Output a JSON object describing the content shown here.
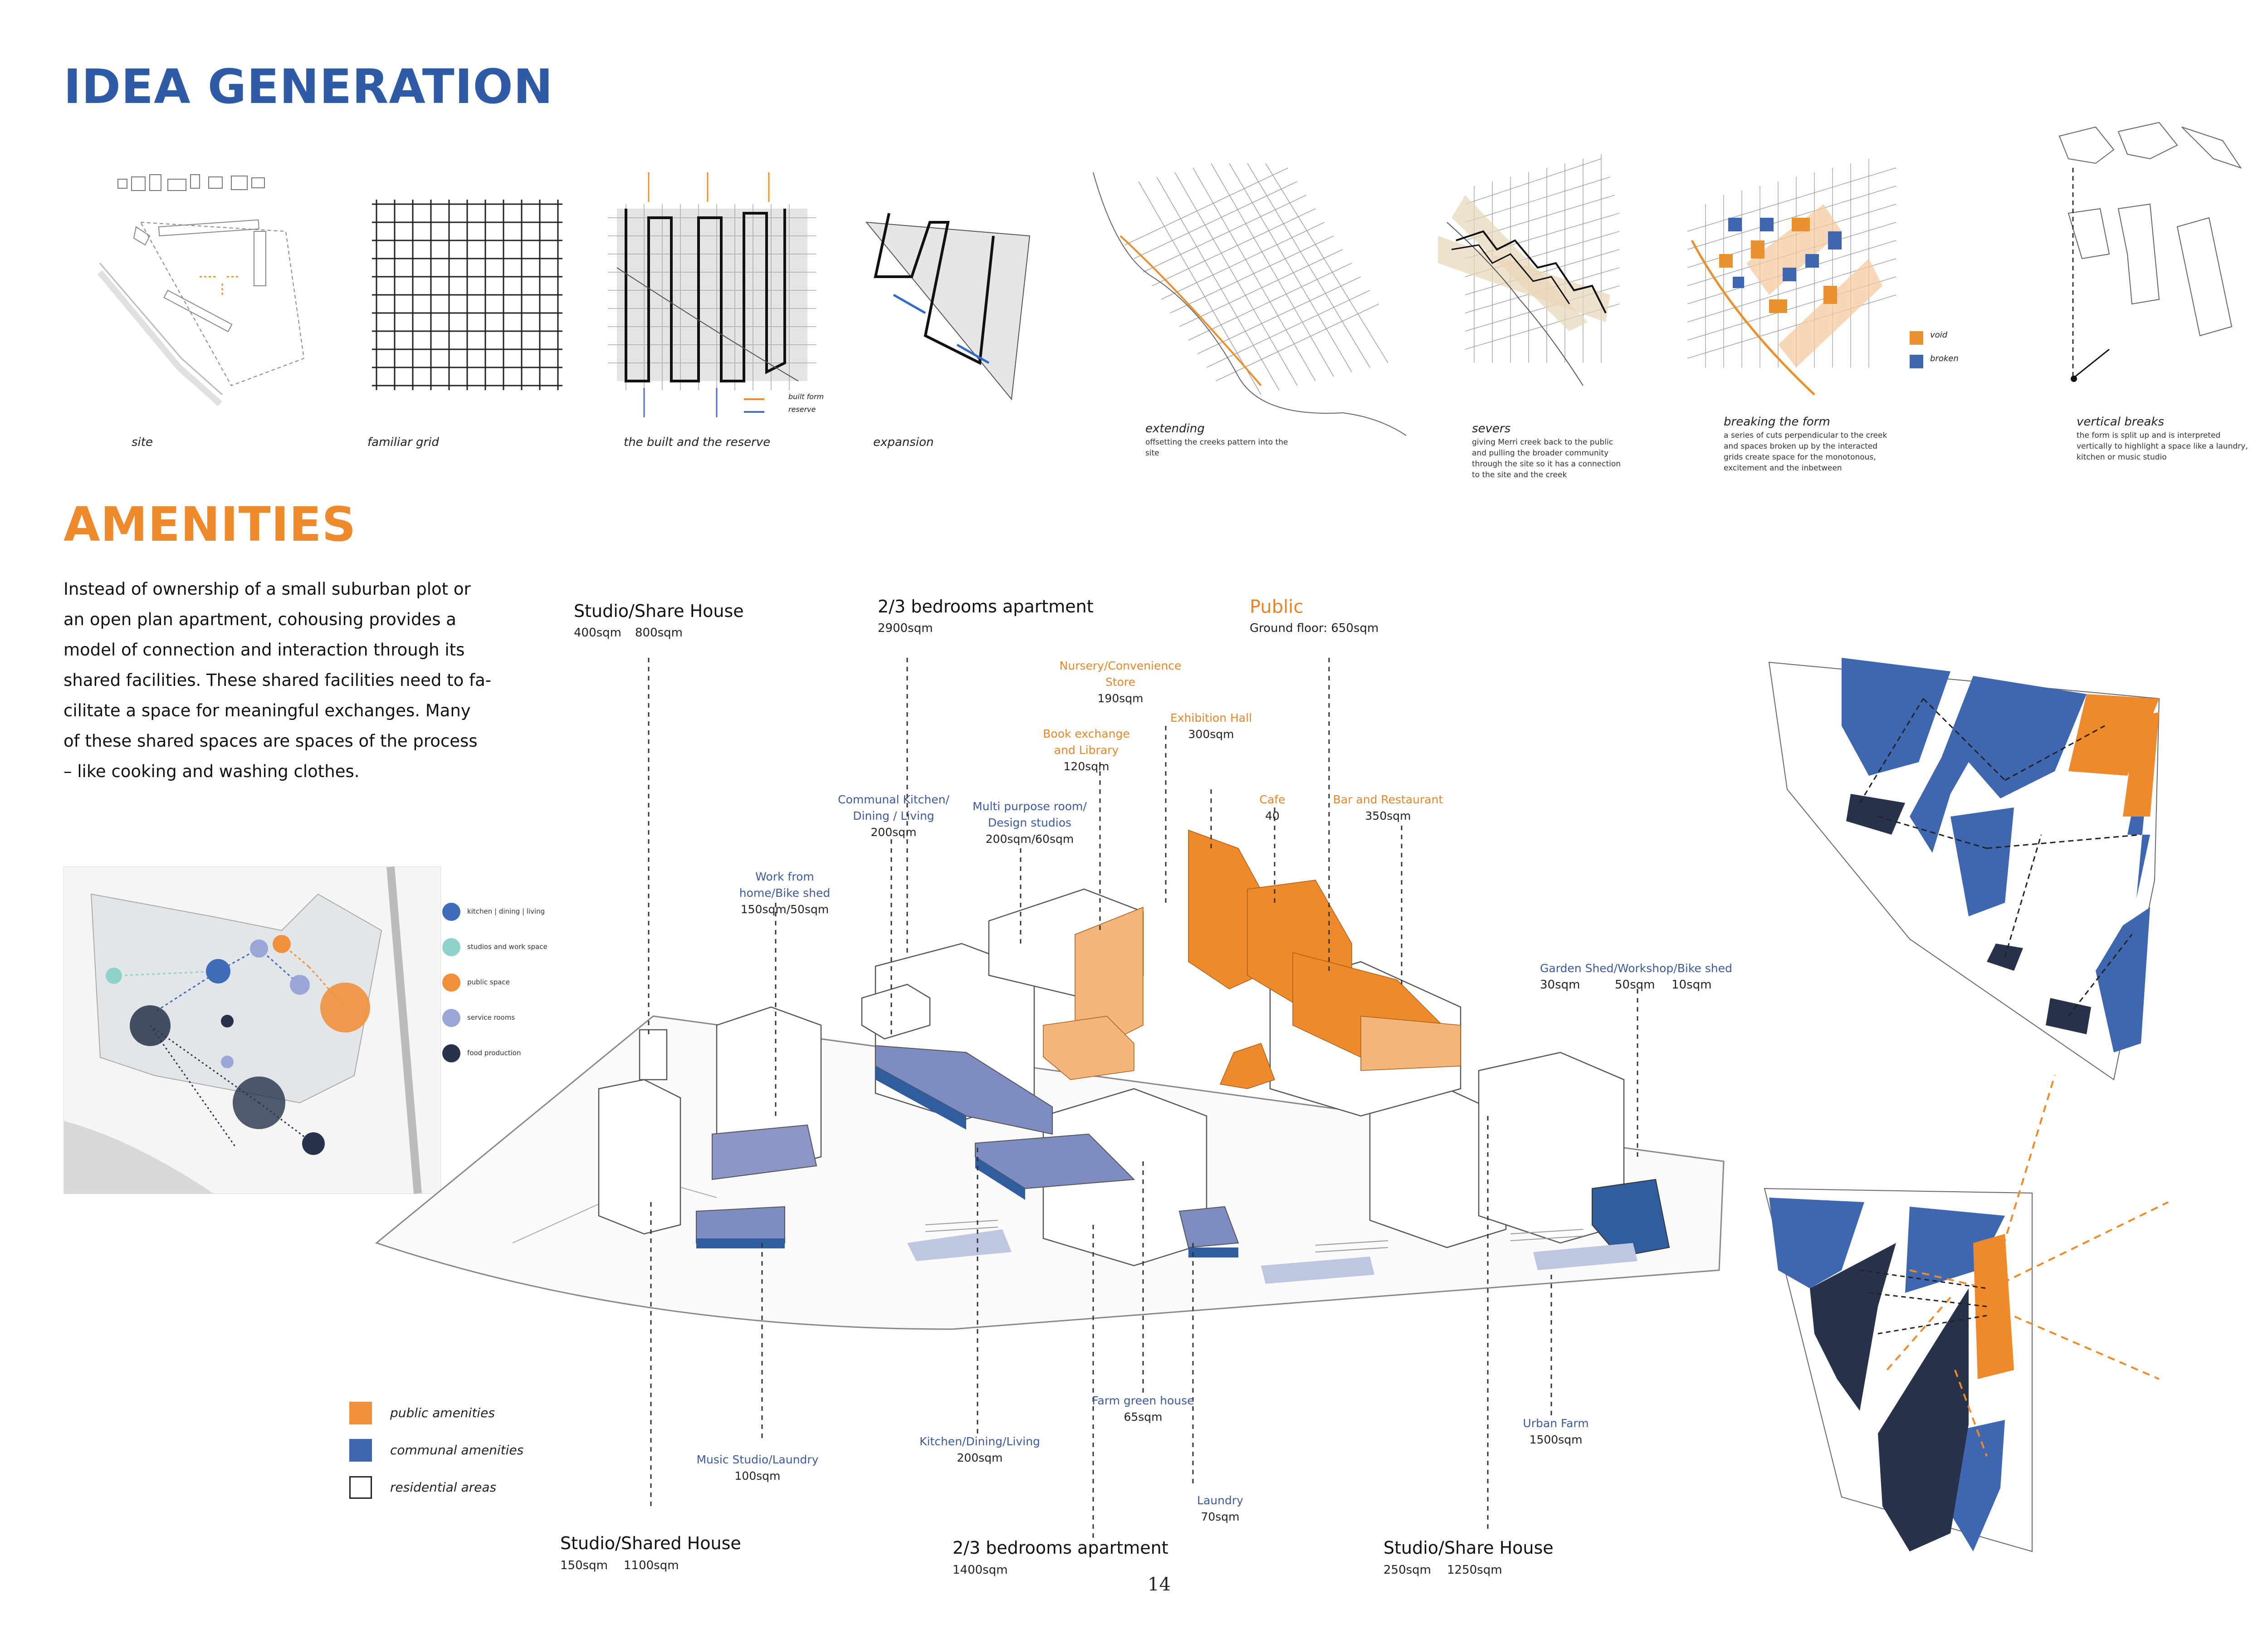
{
  "headings": {
    "idea_generation": "IDEA GENERATION",
    "amenities": "AMENITIES"
  },
  "steps": [
    {
      "title": "site",
      "note": ""
    },
    {
      "title": "familiar grid",
      "note": ""
    },
    {
      "title": "the built and the reserve",
      "note": ""
    },
    {
      "title": "expansion",
      "note": ""
    },
    {
      "title": "extending",
      "note": "offsetting the creeks pattern into the site"
    },
    {
      "title": "severs",
      "note": "giving Merri creek back to the public and pulling the broader community through the site so it has a connection to the site and the creek"
    },
    {
      "title": "breaking the form",
      "note": "a series of cuts perpendicular to the creek and spaces broken up by the interacted grids create space for the monotonous, excitement and the inbetween"
    },
    {
      "title": "vertical breaks",
      "note": "the form is split up and is interpreted vertically to highlight a space like a laundry, kitchen or music studio"
    }
  ],
  "built_reserve_legend": {
    "built": "built form",
    "reserve": "reserve"
  },
  "void_broken_legend": {
    "void": "void",
    "broken": "broken"
  },
  "intro_text": [
    "Instead of ownership of a small suburban plot or",
    "an open plan apartment, cohousing provides a",
    "model of connection and interaction through its",
    "shared facilities. These shared facilities need to fa-",
    "cilitate a space for meaningful exchanges. Many",
    "of these shared spaces are spaces of the process",
    "– like cooking and washing clothes."
  ],
  "small_map_legend": [
    {
      "label": "kitchen | dining | living",
      "color": "#3f6cb8"
    },
    {
      "label": "studios and work space",
      "color": "#8fd2cc"
    },
    {
      "label": "public space",
      "color": "#f0903a"
    },
    {
      "label": "service rooms",
      "color": "#9aa6d8"
    },
    {
      "label": "food production",
      "color": "#28324a"
    }
  ],
  "labels": {
    "studio_share_top": {
      "title": "Studio/Share House",
      "a": "400sqm",
      "b": "800sqm"
    },
    "apt_top": {
      "title": "2/3 bedrooms apartment",
      "a": "2900sqm"
    },
    "public_top": {
      "title": "Public",
      "a": "Ground floor: 650sqm"
    },
    "nursery": {
      "name": "Nursery/Convenience Store",
      "val": "190sqm"
    },
    "exhibition": {
      "name": "Exhibition Hall",
      "val": "300sqm"
    },
    "book": {
      "name": "Book exchange and Library",
      "val": "120sqm"
    },
    "cafe": {
      "name": "Cafe",
      "val": "40"
    },
    "bar": {
      "name": "Bar and Restaurant",
      "val": "350sqm"
    },
    "communal_kitchen": {
      "name": "Communal Kitchen/ Dining / Living",
      "val": "200sqm"
    },
    "multi_purpose": {
      "name": "Multi purpose room/ Design studios",
      "val": "200sqm/60sqm"
    },
    "work_from_home": {
      "name": "Work from home/Bike shed",
      "val": "150sqm/50sqm"
    },
    "garden_shed": {
      "name": "Garden Shed/Workshop/Bike shed",
      "a": "30sqm",
      "b": "50sqm",
      "c": "10sqm"
    },
    "music_studio": {
      "name": "Music Studio/Laundry",
      "val": "100sqm"
    },
    "kitchen_dining": {
      "name": "Kitchen/Dining/Living",
      "val": "200sqm"
    },
    "farm_green": {
      "name": "Farm green house",
      "val": "65sqm"
    },
    "laundry": {
      "name": "Laundry",
      "val": "70sqm"
    },
    "urban_farm": {
      "name": "Urban Farm",
      "val": "1500sqm"
    },
    "studio_shared_bottom": {
      "title": "Studio/Shared House",
      "a": "150sqm",
      "b": "1100sqm"
    },
    "apt_bottom": {
      "title": "2/3 bedrooms apartment",
      "a": "1400sqm"
    },
    "studio_share_bottom": {
      "title": "Studio/Share House",
      "a": "250sqm",
      "b": "1250sqm"
    }
  },
  "amenity_legend": [
    {
      "label": "public amenities",
      "color": "#f0903a"
    },
    {
      "label": "communal amenities",
      "color": "#3f67b0"
    },
    {
      "label": "residential areas",
      "color": "#ffffff"
    }
  ],
  "page_number": "14",
  "colors": {
    "blue_heading": "#2e5aa6",
    "orange_heading": "#ee8a2b",
    "public": "#f0903a",
    "communal": "#3f67b0",
    "dark": "#28324a"
  }
}
